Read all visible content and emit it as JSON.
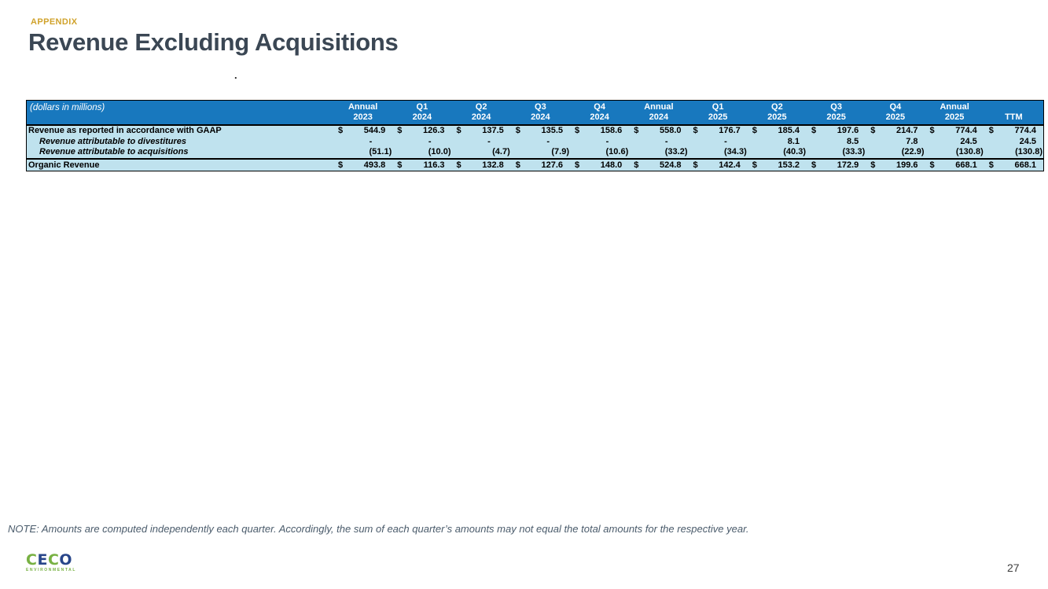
{
  "page": {
    "eyebrow": "APPENDIX",
    "title": "Revenue Excluding Acquisitions",
    "stray_dot": ".",
    "note": "NOTE: Amounts are computed independently each quarter. Accordingly, the sum of each quarter’s amounts may not equal the total amounts for the respective year.",
    "page_number": "27"
  },
  "logo": {
    "letters": [
      {
        "char": "C",
        "color": "#78B143"
      },
      {
        "char": "E",
        "color": "#28468A"
      },
      {
        "char": "C",
        "color": "#78B143"
      },
      {
        "char": "O",
        "color": "#28468A"
      }
    ],
    "subtitle": "ENVIRONMENTAL"
  },
  "table": {
    "corner_label": "(dollars in millions)",
    "colors": {
      "header_bg": "#1878BE",
      "body_bg": "#BFE2EE"
    },
    "columns": [
      {
        "line1": "Annual",
        "line2": "2023"
      },
      {
        "line1": "Q1",
        "line2": "2024"
      },
      {
        "line1": "Q2",
        "line2": "2024"
      },
      {
        "line1": "Q3",
        "line2": "2024"
      },
      {
        "line1": "Q4",
        "line2": "2024"
      },
      {
        "line1": "Annual",
        "line2": "2024"
      },
      {
        "line1": "Q1",
        "line2": "2025"
      },
      {
        "line1": "Q2",
        "line2": "2025"
      },
      {
        "line1": "Q3",
        "line2": "2025"
      },
      {
        "line1": "Q4",
        "line2": "2025"
      },
      {
        "line1": "Annual",
        "line2": "2025"
      },
      {
        "line1": "",
        "line2": "TTM"
      }
    ],
    "rows": [
      {
        "label": "Revenue as reported in accordance with GAAP",
        "style": "first",
        "indent": false,
        "dollar": true,
        "values": [
          "544.9",
          "126.3",
          "137.5",
          "135.5",
          "158.6",
          "558.0",
          "176.7",
          "185.4",
          "197.6",
          "214.7",
          "774.4",
          "774.4"
        ]
      },
      {
        "label": "Revenue attributable to divestitures",
        "style": "",
        "indent": true,
        "dollar": false,
        "values": [
          "-",
          "-",
          "-",
          "-",
          "-",
          "-",
          "-",
          "8.1",
          "8.5",
          "7.8",
          "24.5",
          "24.5"
        ]
      },
      {
        "label": "Revenue attributable to acquisitions",
        "style": "",
        "indent": true,
        "dollar": false,
        "values": [
          "(51.1)",
          "(10.0)",
          "(4.7)",
          "(7.9)",
          "(10.6)",
          "(33.2)",
          "(34.3)",
          "(40.3)",
          "(33.3)",
          "(22.9)",
          "(130.8)",
          "(130.8)"
        ]
      },
      {
        "label": "Organic Revenue",
        "style": "total",
        "indent": false,
        "dollar": true,
        "values": [
          "493.8",
          "116.3",
          "132.8",
          "127.6",
          "148.0",
          "524.8",
          "142.4",
          "153.2",
          "172.9",
          "199.6",
          "668.1",
          "668.1"
        ]
      }
    ]
  }
}
